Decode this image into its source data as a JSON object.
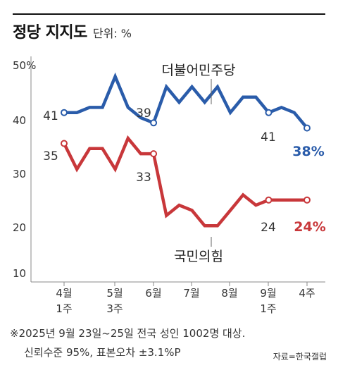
{
  "header": {
    "title": "정당 지지도",
    "unit": "단위: %"
  },
  "chart_data": {
    "type": "line",
    "title": "정당 지지도",
    "subtitle": "단위: %",
    "ylim": [
      10,
      50
    ],
    "y_ticks": [
      "50%",
      "40",
      "30",
      "20",
      "10"
    ],
    "x_ticks": [
      {
        "line1": "4월",
        "line2": "1주"
      },
      {
        "line1": "5월",
        "line2": "3주"
      },
      {
        "line1": "6월",
        "line2": ""
      },
      {
        "line1": "7월",
        "line2": ""
      },
      {
        "line1": "8월",
        "line2": ""
      },
      {
        "line1": "9월",
        "line2": "1주"
      },
      {
        "line1": "4주",
        "line2": ""
      }
    ],
    "series": [
      {
        "name": "더불어민주당",
        "color": "#2a5caa",
        "values": [
          41,
          41,
          42,
          42,
          48,
          42,
          40,
          39,
          46,
          43,
          46,
          43,
          46,
          41,
          44,
          44,
          41,
          42,
          41,
          38
        ],
        "labels": [
          "41",
          "39",
          "41"
        ],
        "end_label": "38%"
      },
      {
        "name": "국민의힘",
        "color": "#c8373a",
        "values": [
          35,
          30,
          34,
          34,
          30,
          36,
          33,
          33,
          21,
          23,
          22,
          19,
          19,
          22,
          25,
          23,
          24,
          24,
          24,
          24
        ],
        "labels": [
          "35",
          "33",
          "24"
        ],
        "end_label": "24%"
      }
    ],
    "grid": false
  },
  "footnote": {
    "line1": "※2025년 9월 23일~25일 전국 성인 1002명 대상.",
    "line2": "신뢰수준 95%, 표본오차 ±3.1%P",
    "source": "자료=한국갤럽"
  }
}
